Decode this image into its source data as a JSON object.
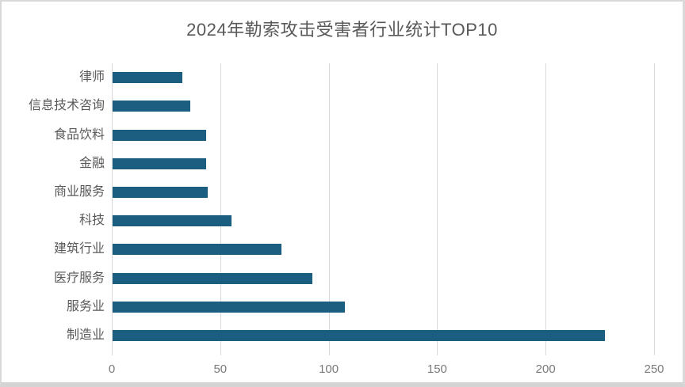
{
  "title": "2024年勒索攻击受害者行业统计TOP10",
  "colors": {
    "bar": "#1b5e80",
    "grid": "#d9d9d9",
    "title_text": "#595959",
    "category_text": "#595959",
    "tick_text": "#7a7a7a",
    "frame": "#d9d9d9"
  },
  "chart_data": {
    "type": "bar",
    "orientation": "horizontal",
    "title": "2024年勒索攻击受害者行业统计TOP10",
    "categories": [
      "律师",
      "信息技术咨询",
      "食品饮料",
      "金融",
      "商业服务",
      "科技",
      "建筑行业",
      "医疗服务",
      "服务业",
      "制造业"
    ],
    "values": [
      32,
      36,
      43,
      43,
      44,
      55,
      78,
      92,
      107,
      227
    ],
    "xlabel": "",
    "ylabel": "",
    "xlim": [
      0,
      250
    ],
    "x_ticks": [
      0,
      50,
      100,
      150,
      200,
      250
    ],
    "grid": "vertical-gridlines",
    "legend": "none",
    "bar_order_note": "categories listed top-to-bottom as displayed; values ascend toward bottom"
  }
}
